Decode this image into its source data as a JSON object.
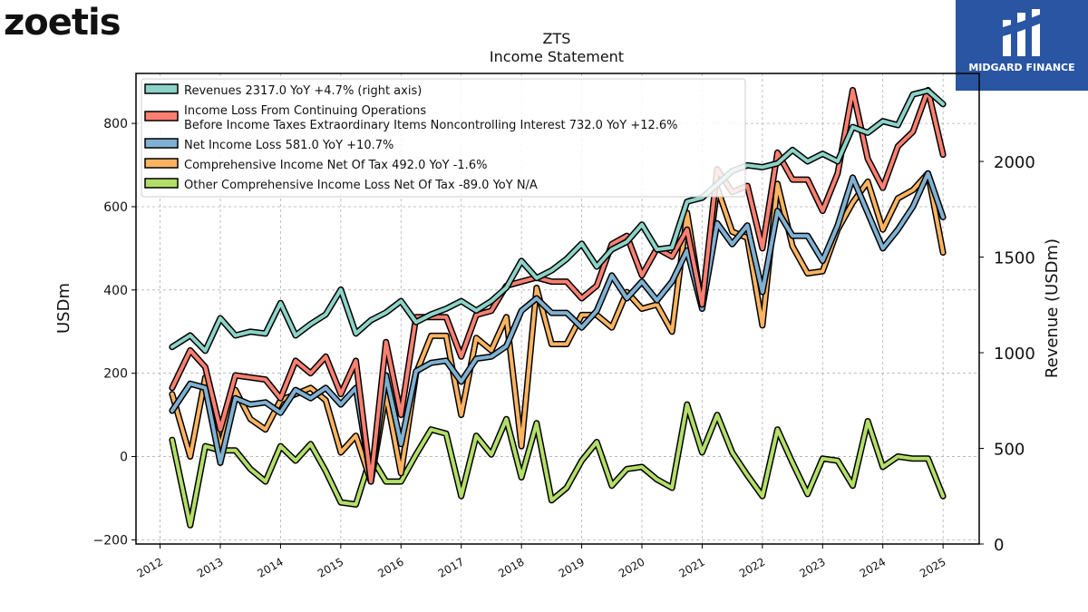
{
  "brand": {
    "logo_text": "zoetis"
  },
  "partner": {
    "name": "MIDGARD FINANCE"
  },
  "chart_data": {
    "type": "line",
    "title": "ZTS",
    "subtitle": "Income Statement",
    "ylabel": "USDm",
    "ylabel_right": "Revenue (USDm)",
    "ylim": [
      -210,
      920
    ],
    "ylim_right": [
      0,
      2460
    ],
    "yticks": [
      -200,
      0,
      200,
      400,
      600,
      800
    ],
    "yticks_labels": [
      "−200",
      "0",
      "200",
      "400",
      "600",
      "800"
    ],
    "yticks_right": [
      0,
      500,
      1000,
      1500,
      2000
    ],
    "xlim": [
      2011.6,
      2025.6
    ],
    "xticks": [
      "2012",
      "2013",
      "2014",
      "2015",
      "2016",
      "2017",
      "2018",
      "2019",
      "2020",
      "2021",
      "2022",
      "2023",
      "2024",
      "2025"
    ],
    "grid": true,
    "legend_position": "top-left",
    "x": [
      2012.2,
      2012.5,
      2012.75,
      2013.0,
      2013.25,
      2013.5,
      2013.75,
      2014.0,
      2014.25,
      2014.5,
      2014.75,
      2015.0,
      2015.25,
      2015.5,
      2015.75,
      2016.0,
      2016.25,
      2016.5,
      2016.75,
      2017.0,
      2017.25,
      2017.5,
      2017.75,
      2018.0,
      2018.25,
      2018.5,
      2018.75,
      2019.0,
      2019.25,
      2019.5,
      2019.75,
      2020.0,
      2020.25,
      2020.5,
      2020.75,
      2021.0,
      2021.25,
      2021.5,
      2021.75,
      2022.0,
      2022.25,
      2022.5,
      2022.75,
      2023.0,
      2023.25,
      2023.5,
      2023.75,
      2024.0,
      2024.25,
      2024.5,
      2024.75,
      2025.0
    ],
    "series": [
      {
        "name": "Revenues",
        "legend": "Revenues  2317.0 YoY +4.7% (right axis)",
        "color": "#8dd3c7",
        "axis": "right",
        "values": [
          1030,
          1090,
          1010,
          1180,
          1090,
          1110,
          1100,
          1260,
          1090,
          1150,
          1200,
          1330,
          1100,
          1170,
          1210,
          1270,
          1160,
          1200,
          1230,
          1270,
          1220,
          1270,
          1340,
          1480,
          1390,
          1430,
          1490,
          1570,
          1450,
          1540,
          1580,
          1670,
          1540,
          1550,
          1790,
          1810,
          1880,
          1950,
          1980,
          1970,
          1990,
          2060,
          2000,
          2040,
          2000,
          2180,
          2150,
          2210,
          2190,
          2350,
          2370,
          2300
        ]
      },
      {
        "name": "Income Loss From Continuing Operations Before Income Taxes Extraordinary Items Noncontrolling Interest",
        "legend": [
          "Income Loss From Continuing Operations",
          "Before Income Taxes Extraordinary Items Noncontrolling Interest  732.0 YoY +12.6%"
        ],
        "color": "#fb8072",
        "axis": "left",
        "values": [
          165,
          255,
          215,
          65,
          195,
          190,
          185,
          140,
          230,
          200,
          240,
          150,
          230,
          -60,
          275,
          100,
          335,
          335,
          335,
          240,
          340,
          350,
          410,
          420,
          430,
          420,
          420,
          380,
          410,
          510,
          530,
          435,
          500,
          480,
          545,
          365,
          690,
          635,
          650,
          500,
          730,
          665,
          665,
          590,
          680,
          880,
          715,
          645,
          745,
          780,
          880,
          725
        ]
      },
      {
        "name": "Net Income Loss",
        "legend": "Net Income Loss  581.0 YoY +10.7%",
        "color": "#80b1d3",
        "axis": "left",
        "values": [
          110,
          175,
          165,
          -15,
          140,
          125,
          130,
          105,
          160,
          140,
          165,
          125,
          165,
          -55,
          195,
          30,
          205,
          225,
          230,
          180,
          235,
          240,
          265,
          350,
          380,
          345,
          345,
          310,
          350,
          435,
          380,
          420,
          375,
          420,
          495,
          355,
          560,
          510,
          555,
          395,
          590,
          530,
          530,
          470,
          555,
          670,
          585,
          500,
          545,
          600,
          680,
          575
        ]
      },
      {
        "name": "Comprehensive Income Net Of Tax",
        "legend": "Comprehensive Income Net Of Tax  492.0 YoY -1.6%",
        "color": "#fdb462",
        "axis": "left",
        "values": [
          150,
          0,
          190,
          20,
          160,
          90,
          65,
          135,
          150,
          165,
          135,
          10,
          50,
          -60,
          150,
          -40,
          200,
          290,
          290,
          100,
          285,
          255,
          335,
          25,
          405,
          270,
          270,
          340,
          340,
          310,
          395,
          355,
          365,
          300,
          585,
          360,
          645,
          540,
          525,
          315,
          655,
          505,
          440,
          445,
          545,
          610,
          660,
          545,
          620,
          640,
          680,
          490
        ]
      },
      {
        "name": "Other Comprehensive Income Loss Net Of Tax",
        "legend": "Other Comprehensive Income Loss Net Of Tax  -89.0 YoY N/A",
        "color": "#b3de69",
        "axis": "left",
        "values": [
          40,
          -165,
          25,
          15,
          15,
          -30,
          -60,
          25,
          -10,
          30,
          -35,
          -110,
          -115,
          0,
          -60,
          -60,
          5,
          65,
          55,
          -95,
          50,
          5,
          90,
          -50,
          80,
          -105,
          -75,
          -10,
          35,
          -70,
          -30,
          -25,
          -55,
          -75,
          125,
          10,
          100,
          10,
          -45,
          -95,
          65,
          -15,
          -90,
          -5,
          -10,
          -70,
          85,
          -25,
          0,
          -5,
          -5,
          -95
        ]
      }
    ]
  }
}
